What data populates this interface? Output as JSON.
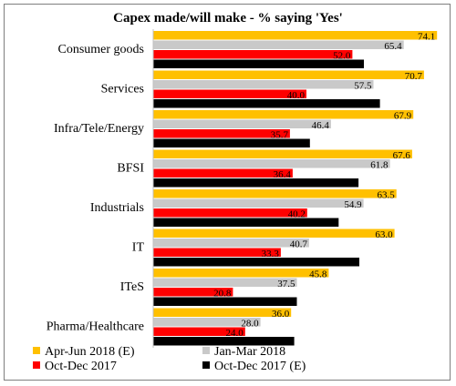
{
  "chart_data": {
    "type": "bar",
    "orientation": "horizontal",
    "title": "Capex made/will make - % saying 'Yes'",
    "xlabel": "",
    "ylabel": "",
    "xlim": [
      0,
      80
    ],
    "grid": false,
    "legend_position": "bottom",
    "categories": [
      "Consumer goods",
      "Services",
      "Infra/Tele/Energy",
      "BFSI",
      "Industrials",
      "IT",
      "ITeS",
      "Pharma/Healthcare"
    ],
    "series": [
      {
        "name": "Apr-Jun 2018 (E)",
        "color": "#ffc000",
        "values": [
          74.1,
          70.7,
          67.9,
          67.6,
          63.5,
          63.0,
          45.8,
          36.0
        ]
      },
      {
        "name": "Jan-Mar 2018",
        "color": "#c9c9c9",
        "values": [
          65.4,
          57.5,
          46.4,
          61.8,
          54.9,
          40.7,
          37.5,
          28.0
        ]
      },
      {
        "name": "Oct-Dec 2017",
        "color": "#ff0000",
        "values": [
          52.0,
          40.0,
          35.7,
          36.4,
          40.2,
          33.3,
          20.8,
          24.0
        ]
      },
      {
        "name": "Oct-Dec 2017 (E)",
        "color": "#000000",
        "values": [
          55.0,
          59.2,
          40.9,
          53.6,
          48.4,
          53.8,
          37.5,
          36.8
        ]
      }
    ]
  }
}
